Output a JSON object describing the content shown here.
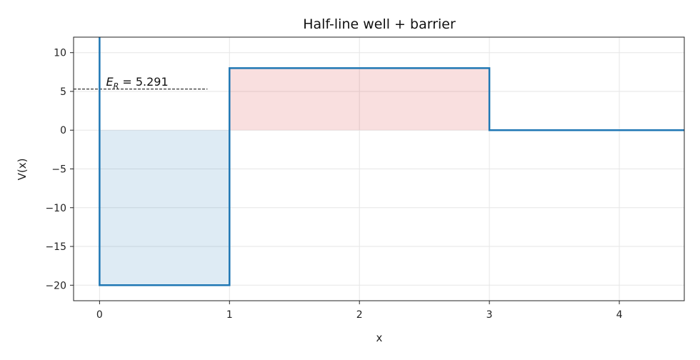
{
  "chart_data": {
    "type": "line",
    "title": "Half-line well + barrier",
    "xlabel": "x",
    "ylabel": "V(x)",
    "xlim": [
      -0.2,
      4.5
    ],
    "ylim": [
      -22,
      12
    ],
    "xticks": [
      0,
      1,
      2,
      3,
      4
    ],
    "yticks": [
      10,
      5,
      0,
      -5,
      -10,
      -15,
      -20
    ],
    "grid": true,
    "series": [
      {
        "color": "#1f77b4",
        "x": [
          0,
          0,
          1,
          1,
          3,
          3,
          4.5
        ],
        "y": [
          12,
          -20,
          -20,
          8,
          8,
          0,
          0
        ]
      }
    ],
    "shaded_regions": [
      {
        "x": [
          0,
          1
        ],
        "y": [
          -20,
          0
        ],
        "color": "#1f77b4"
      },
      {
        "x": [
          1,
          3
        ],
        "y": [
          0,
          8
        ],
        "color": "#d62728"
      }
    ],
    "reference_line": {
      "y": 5.291,
      "x": [
        -0.2,
        0.83
      ],
      "style": "dashed",
      "color": "#000000"
    },
    "annotation": {
      "label_main": "E",
      "label_sub": "R",
      "label_rest": " = 5.291",
      "x": 0.05,
      "y": 5.291
    }
  }
}
